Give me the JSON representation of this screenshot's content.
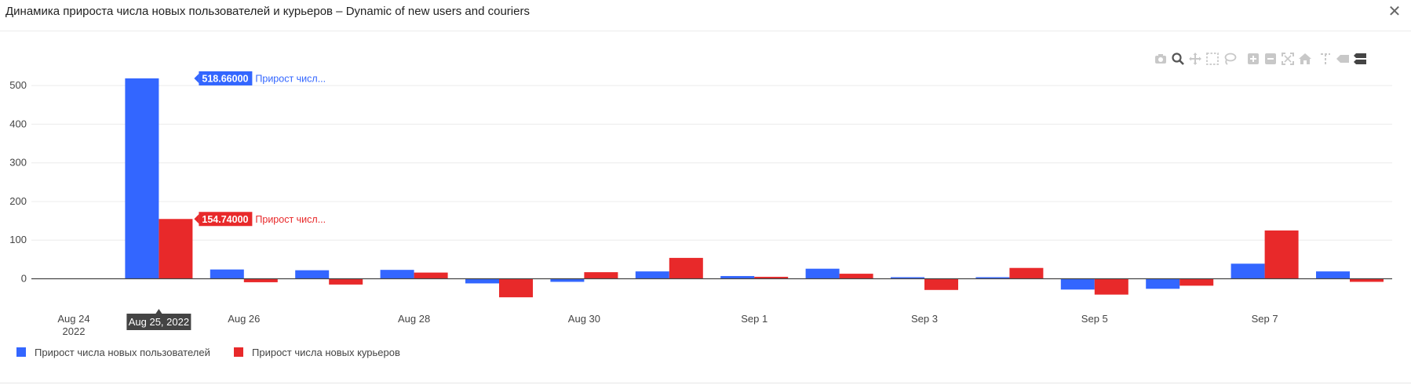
{
  "window": {
    "title": "Динамика прироста числа новых пользователей и курьеров  –  Dynamic of new users and couriers",
    "close_glyph": "✕"
  },
  "toolbar": {
    "icons": [
      "camera-icon",
      "zoom-icon",
      "pan-icon",
      "box-select-icon",
      "lasso-select-icon",
      "zoom-in-icon",
      "zoom-out-icon",
      "autoscale-icon",
      "reset-axes-icon",
      "spike-lines-icon",
      "hover-closest-icon",
      "hover-compare-icon"
    ]
  },
  "chart_data": {
    "type": "bar",
    "categories": [
      "Aug 24",
      "Aug 25",
      "Aug 26",
      "Aug 27",
      "Aug 28",
      "Aug 29",
      "Aug 30",
      "Aug 31",
      "Sep 1",
      "Sep 2",
      "Sep 3",
      "Sep 4",
      "Sep 5",
      "Sep 6",
      "Sep 7",
      "Sep 8"
    ],
    "x_tick_labels": [
      {
        "category": "Aug 24",
        "label": "Aug 24",
        "sub": "2022"
      },
      {
        "category": "Aug 26",
        "label": "Aug 26"
      },
      {
        "category": "Aug 28",
        "label": "Aug 28"
      },
      {
        "category": "Aug 30",
        "label": "Aug 30"
      },
      {
        "category": "Sep 1",
        "label": "Sep 1"
      },
      {
        "category": "Sep 3",
        "label": "Sep 3"
      },
      {
        "category": "Sep 5",
        "label": "Sep 5"
      },
      {
        "category": "Sep 7",
        "label": "Sep 7"
      }
    ],
    "y_ticks": [
      0,
      100,
      200,
      300,
      400,
      500
    ],
    "ylim": [
      -70,
      560
    ],
    "grid": true,
    "legend_position": "bottom-left",
    "series": [
      {
        "name": "Прирост числа новых пользователей",
        "color": "#3366ff",
        "values": [
          0,
          518.66,
          24,
          22,
          23,
          -12,
          -8,
          19,
          7,
          26,
          4,
          4,
          -28,
          -26,
          39,
          19
        ]
      },
      {
        "name": "Прирост числа новых курьеров",
        "color": "#e8292a",
        "values": [
          0,
          154.74,
          -9,
          -15,
          16,
          -48,
          17,
          54,
          5,
          13,
          -29,
          28,
          -41,
          -18,
          125,
          -8
        ]
      }
    ],
    "hover": {
      "category": "Aug 25",
      "x_label": "Aug 25, 2022",
      "labels": [
        {
          "series": 0,
          "value_text": "518.66000",
          "name_text": "Прирост числ..."
        },
        {
          "series": 1,
          "value_text": "154.74000",
          "name_text": "Прирост числ..."
        }
      ]
    }
  },
  "legend": {
    "items": [
      {
        "label": "Прирост числа новых пользователей",
        "color": "#3366ff"
      },
      {
        "label": "Прирост числа новых курьеров",
        "color": "#e8292a"
      }
    ]
  }
}
